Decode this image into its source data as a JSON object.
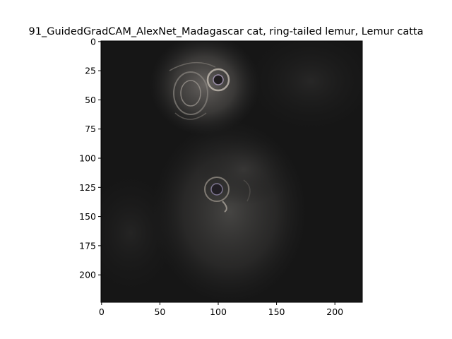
{
  "figure": {
    "title": "91_GuidedGradCAM_AlexNet_Madagascar cat, ring-tailed lemur, Lemur catta"
  },
  "image": {
    "x_ticks": [
      "0",
      "50",
      "100",
      "150",
      "200"
    ],
    "y_ticks": [
      "0",
      "25",
      "50",
      "75",
      "100",
      "125",
      "150",
      "175",
      "200"
    ],
    "x_range": [
      0,
      224
    ],
    "y_range": [
      0,
      224
    ]
  }
}
